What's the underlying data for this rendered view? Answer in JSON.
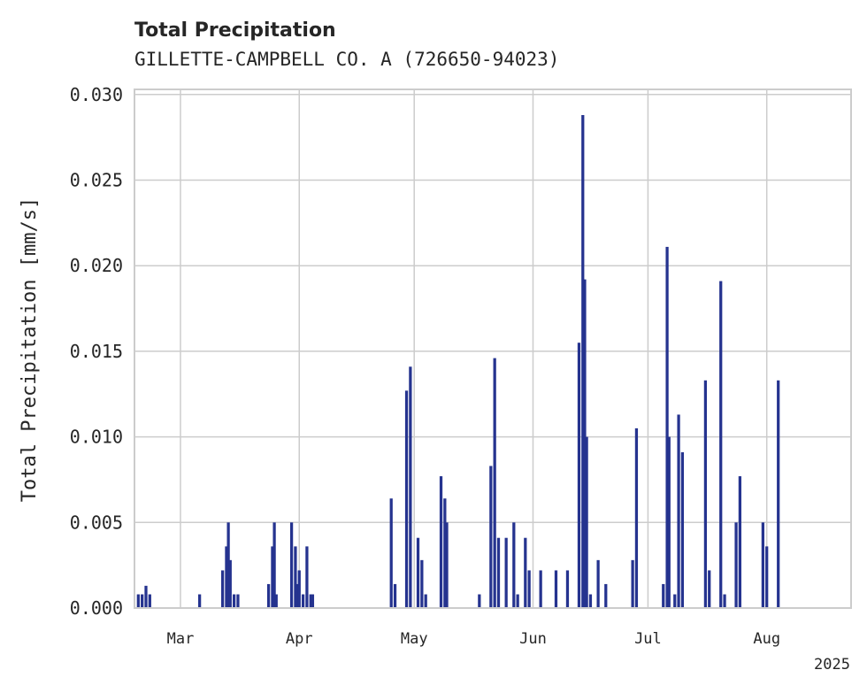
{
  "chart_data": {
    "type": "bar",
    "title": "Total Precipitation",
    "subtitle": "GILLETTE-CAMPBELL CO. A (726650-94023)",
    "xlabel": "",
    "ylabel": "Total Precipitation [mm/s]",
    "ylim": [
      0,
      0.0303
    ],
    "xlim": [
      "2025-02-17",
      "2025-08-23"
    ],
    "grid": true,
    "bar_color": "#25338f",
    "yticks": [
      "0.000",
      "0.005",
      "0.010",
      "0.015",
      "0.020",
      "0.025",
      "0.030"
    ],
    "xticks": [
      {
        "date": "2025-03-01",
        "label": "Mar"
      },
      {
        "date": "2025-04-01",
        "label": "Apr"
      },
      {
        "date": "2025-05-01",
        "label": "May"
      },
      {
        "date": "2025-06-01",
        "label": "Jun"
      },
      {
        "date": "2025-07-01",
        "label": "Jul"
      },
      {
        "date": "2025-08-01",
        "label": "Aug"
      }
    ],
    "year_label": "2025",
    "series": [
      {
        "values": [
          [
            "2025-02-18",
            0.0008
          ],
          [
            "2025-02-19",
            0.0008
          ],
          [
            "2025-02-20",
            0.0013
          ],
          [
            "2025-02-21",
            0.0008
          ],
          [
            "2025-03-06",
            0.0008
          ],
          [
            "2025-03-12",
            0.0022
          ],
          [
            "2025-03-13",
            0.0036
          ],
          [
            "2025-03-13 12:00",
            0.005
          ],
          [
            "2025-03-14",
            0.0028
          ],
          [
            "2025-03-15",
            0.0008
          ],
          [
            "2025-03-16",
            0.0008
          ],
          [
            "2025-03-24",
            0.0014
          ],
          [
            "2025-03-25",
            0.0036
          ],
          [
            "2025-03-25 12:00",
            0.005
          ],
          [
            "2025-03-26",
            0.0008
          ],
          [
            "2025-04-04",
            0.0008
          ],
          [
            "2025-03-30",
            0.005
          ],
          [
            "2025-03-31",
            0.0036
          ],
          [
            "2025-03-31 12:00",
            0.0014
          ],
          [
            "2025-04-01",
            0.0022
          ],
          [
            "2025-04-02",
            0.0008
          ],
          [
            "2025-04-03",
            0.0036
          ],
          [
            "2025-04-04 12:00",
            0.0008
          ],
          [
            "2025-04-25",
            0.0064
          ],
          [
            "2025-04-26",
            0.0014
          ],
          [
            "2025-04-29",
            0.0127
          ],
          [
            "2025-04-30",
            0.0141
          ],
          [
            "2025-05-02",
            0.0041
          ],
          [
            "2025-05-03",
            0.0028
          ],
          [
            "2025-05-04",
            0.0008
          ],
          [
            "2025-05-08",
            0.0077
          ],
          [
            "2025-05-09",
            0.0064
          ],
          [
            "2025-05-09 12:00",
            0.005
          ],
          [
            "2025-05-18",
            0.0008
          ],
          [
            "2025-05-21",
            0.0083
          ],
          [
            "2025-05-22",
            0.0146
          ],
          [
            "2025-05-23",
            0.0041
          ],
          [
            "2025-05-25",
            0.0041
          ],
          [
            "2025-05-27",
            0.005
          ],
          [
            "2025-05-28",
            0.0008
          ],
          [
            "2025-05-30",
            0.0041
          ],
          [
            "2025-05-31",
            0.0022
          ],
          [
            "2025-06-03",
            0.0022
          ],
          [
            "2025-06-07",
            0.0022
          ],
          [
            "2025-06-10",
            0.0022
          ],
          [
            "2025-06-13",
            0.0155
          ],
          [
            "2025-06-14",
            0.0288
          ],
          [
            "2025-06-14 12:00",
            0.0192
          ],
          [
            "2025-06-15",
            0.01
          ],
          [
            "2025-06-16",
            0.0008
          ],
          [
            "2025-06-18",
            0.0028
          ],
          [
            "2025-06-20",
            0.0014
          ],
          [
            "2025-06-27",
            0.0028
          ],
          [
            "2025-06-28",
            0.0105
          ],
          [
            "2025-07-05",
            0.0014
          ],
          [
            "2025-07-06",
            0.0211
          ],
          [
            "2025-07-06 12:00",
            0.01
          ],
          [
            "2025-07-08",
            0.0008
          ],
          [
            "2025-07-09",
            0.0113
          ],
          [
            "2025-07-10",
            0.0091
          ],
          [
            "2025-07-16",
            0.0133
          ],
          [
            "2025-07-17",
            0.0022
          ],
          [
            "2025-07-20",
            0.0191
          ],
          [
            "2025-07-21",
            0.0008
          ],
          [
            "2025-07-24",
            0.005
          ],
          [
            "2025-07-25",
            0.0077
          ],
          [
            "2025-07-31",
            0.005
          ],
          [
            "2025-08-01",
            0.0036
          ],
          [
            "2025-08-04",
            0.0133
          ]
        ]
      }
    ]
  }
}
